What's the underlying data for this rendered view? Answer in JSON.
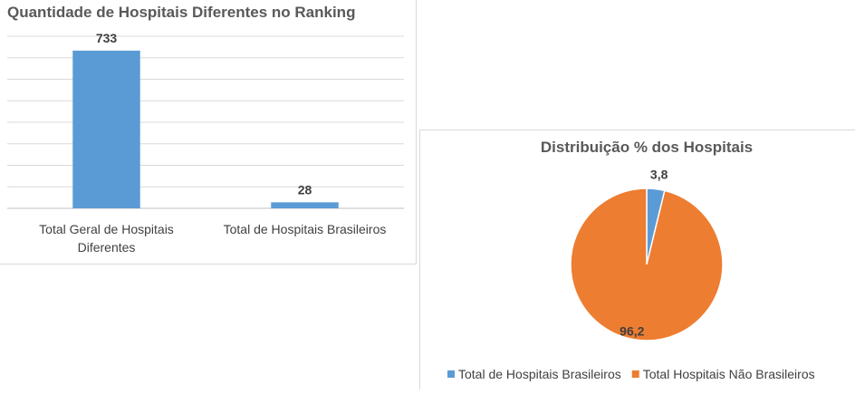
{
  "chart_data": [
    {
      "type": "bar",
      "title": "Quantidade de Hospitais Diferentes no Ranking",
      "categories": [
        [
          "Total Geral de Hospitais",
          "Diferentes"
        ],
        [
          "Total de Hospitais Brasileiros"
        ]
      ],
      "values": [
        733,
        28
      ],
      "data_labels": [
        "733",
        "28"
      ],
      "ylim": [
        0,
        800
      ],
      "grid": true,
      "color": "#5B9BD5"
    },
    {
      "type": "pie",
      "title": "Distribuição % dos Hospitais",
      "slices": [
        {
          "name": "Total de Hospitais Brasileiros",
          "value": 3.8,
          "label": "3,8",
          "color": "#5B9BD5"
        },
        {
          "name": "Total Hospitais Não Brasileiros",
          "value": 96.2,
          "label": "96,2",
          "color": "#ED7D31"
        }
      ],
      "legend": "bottom"
    }
  ]
}
